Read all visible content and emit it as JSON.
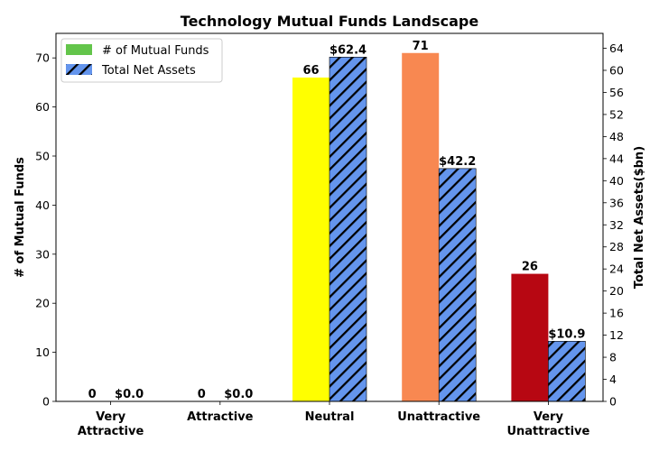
{
  "chart_data": {
    "type": "bar",
    "title": "Technology Mutual Funds Landscape",
    "categories": [
      "Very\nAttractive",
      "Attractive",
      "Neutral",
      "Unattractive",
      "Very\nUnattractive"
    ],
    "ylabel": "# of Mutual Funds",
    "y2label": "Total Net Assets($bn)",
    "ylim": [
      0,
      75
    ],
    "y2lim": [
      0,
      66.7
    ],
    "yticks": [
      0,
      10,
      20,
      30,
      40,
      50,
      60,
      70
    ],
    "y2ticks": [
      0,
      4,
      8,
      12,
      16,
      20,
      24,
      28,
      32,
      36,
      40,
      44,
      48,
      52,
      56,
      60,
      64
    ],
    "legend_position": "top-left",
    "series": [
      {
        "name": "# of Mutual Funds",
        "axis": "left",
        "values": [
          0,
          0,
          66,
          71,
          26
        ],
        "labels": [
          "0",
          "0",
          "66",
          "71",
          "26"
        ],
        "colors": [
          "#63c54b",
          "#63c54b",
          "#ffff00",
          "#f88851",
          "#b70712"
        ],
        "legend_color": "#63c54b"
      },
      {
        "name": "Total Net Assets",
        "axis": "right",
        "values": [
          0.0,
          0.0,
          62.4,
          42.2,
          10.9
        ],
        "labels": [
          "$0.0",
          "$0.0",
          "$62.4",
          "$42.2",
          "$10.9"
        ],
        "color": "#6495ed",
        "hatch": "//"
      }
    ]
  }
}
